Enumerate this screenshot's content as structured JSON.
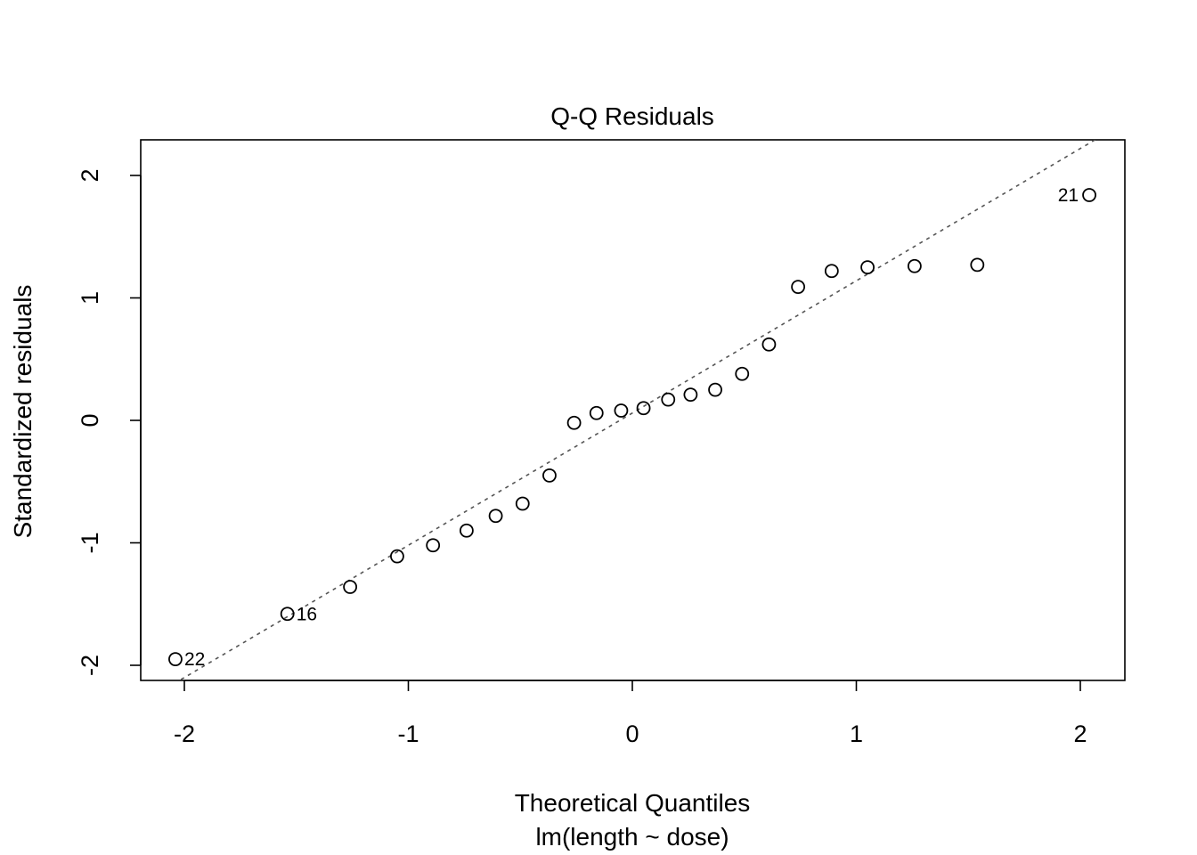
{
  "chart_data": {
    "type": "scatter",
    "title": "Q-Q Residuals",
    "xlabel": "Theoretical Quantiles",
    "xlabel_sub": "lm(length ~ dose)",
    "ylabel": "Standardized residuals",
    "xlim": [
      -2.2,
      2.2
    ],
    "ylim": [
      -2.1,
      2.3
    ],
    "x_ticks": [
      -2,
      -1,
      0,
      1,
      2
    ],
    "y_ticks": [
      -2,
      -1,
      0,
      1,
      2
    ],
    "x_tick_labels": [
      "-2",
      "-1",
      "0",
      "1",
      "2"
    ],
    "y_tick_labels": [
      "-2",
      "-1",
      "0",
      "1",
      "2"
    ],
    "grid": false,
    "reference_line": {
      "intercept": 0.06,
      "slope": 1.08,
      "style": "dotted",
      "color": "#555555"
    },
    "points": [
      {
        "x": -2.04,
        "y": -1.95,
        "label": "22",
        "label_side": "right"
      },
      {
        "x": -1.54,
        "y": -1.58,
        "label": "16",
        "label_side": "right"
      },
      {
        "x": -1.26,
        "y": -1.36,
        "label": ""
      },
      {
        "x": -1.05,
        "y": -1.11,
        "label": ""
      },
      {
        "x": -0.89,
        "y": -1.02,
        "label": ""
      },
      {
        "x": -0.74,
        "y": -0.9,
        "label": ""
      },
      {
        "x": -0.61,
        "y": -0.78,
        "label": ""
      },
      {
        "x": -0.49,
        "y": -0.68,
        "label": ""
      },
      {
        "x": -0.37,
        "y": -0.45,
        "label": ""
      },
      {
        "x": -0.26,
        "y": -0.02,
        "label": ""
      },
      {
        "x": -0.16,
        "y": 0.06,
        "label": ""
      },
      {
        "x": -0.05,
        "y": 0.08,
        "label": ""
      },
      {
        "x": 0.05,
        "y": 0.1,
        "label": ""
      },
      {
        "x": 0.16,
        "y": 0.17,
        "label": ""
      },
      {
        "x": 0.26,
        "y": 0.21,
        "label": ""
      },
      {
        "x": 0.37,
        "y": 0.25,
        "label": ""
      },
      {
        "x": 0.49,
        "y": 0.38,
        "label": ""
      },
      {
        "x": 0.61,
        "y": 0.62,
        "label": ""
      },
      {
        "x": 0.74,
        "y": 1.09,
        "label": ""
      },
      {
        "x": 0.89,
        "y": 1.22,
        "label": ""
      },
      {
        "x": 1.05,
        "y": 1.25,
        "label": ""
      },
      {
        "x": 1.26,
        "y": 1.26,
        "label": ""
      },
      {
        "x": 1.54,
        "y": 1.27,
        "label": ""
      },
      {
        "x": 2.04,
        "y": 1.84,
        "label": "21",
        "label_side": "left"
      }
    ]
  }
}
